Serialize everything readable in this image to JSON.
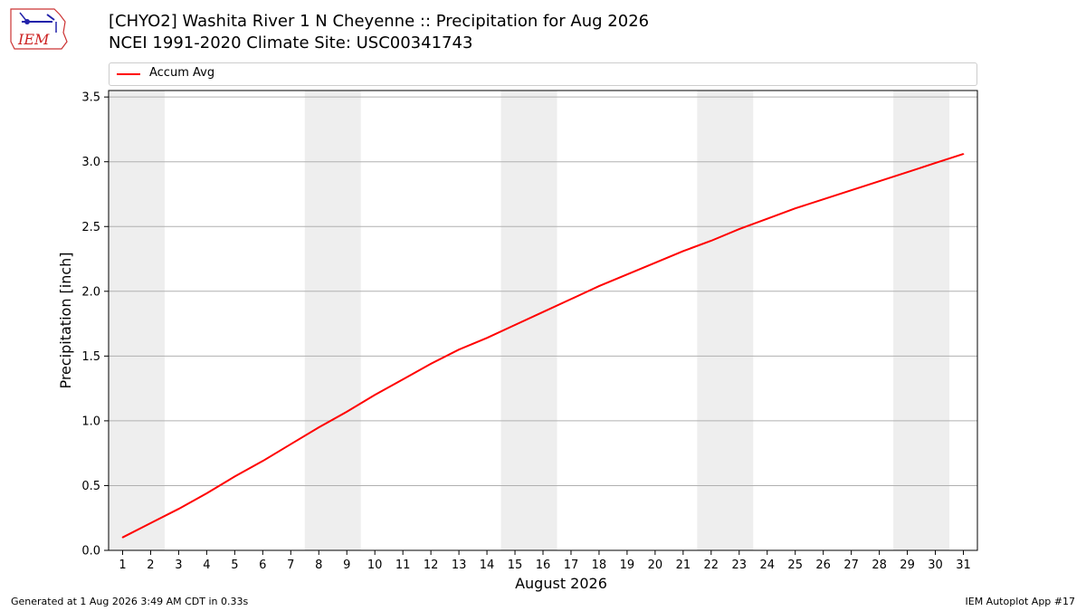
{
  "header": {
    "title_line1": "[CHYO2] Washita River 1 N Cheyenne :: Precipitation for Aug 2026",
    "title_line2": "NCEI 1991-2020 Climate Site: USC00341743"
  },
  "logo": {
    "text": "IEM",
    "icon": "iem-logo-icon"
  },
  "footer": {
    "left": "Generated at 1 Aug 2026 3:49 AM CDT in 0.33s",
    "right": "IEM Autoplot App #17"
  },
  "colors": {
    "line": "#ff0000",
    "shade": "#eeeeee",
    "grid": "#b0b0b0"
  },
  "chart_data": {
    "type": "line",
    "title": "[CHYO2] Washita River 1 N Cheyenne :: Precipitation for Aug 2026",
    "subtitle": "NCEI 1991-2020 Climate Site: USC00341743",
    "xlabel": "August 2026",
    "ylabel": "Precipitation [inch]",
    "xlim": [
      0.5,
      31.5
    ],
    "ylim": [
      0,
      3.55
    ],
    "x_ticks": [
      1,
      2,
      3,
      4,
      5,
      6,
      7,
      8,
      9,
      10,
      11,
      12,
      13,
      14,
      15,
      16,
      17,
      18,
      19,
      20,
      21,
      22,
      23,
      24,
      25,
      26,
      27,
      28,
      29,
      30,
      31
    ],
    "y_ticks": [
      0.0,
      0.5,
      1.0,
      1.5,
      2.0,
      2.5,
      3.0,
      3.5
    ],
    "y_tick_labels": [
      "0.0",
      "0.5",
      "1.0",
      "1.5",
      "2.0",
      "2.5",
      "3.0",
      "3.5"
    ],
    "grid": "horizontal",
    "legend_placement": "top",
    "weekend_shading": [
      [
        0.5,
        2.5
      ],
      [
        7.5,
        9.5
      ],
      [
        14.5,
        16.5
      ],
      [
        21.5,
        23.5
      ],
      [
        28.5,
        30.5
      ]
    ],
    "series": [
      {
        "name": "Accum Avg",
        "x": [
          1,
          2,
          3,
          4,
          5,
          6,
          7,
          8,
          9,
          10,
          11,
          12,
          13,
          14,
          15,
          16,
          17,
          18,
          19,
          20,
          21,
          22,
          23,
          24,
          25,
          26,
          27,
          28,
          29,
          30,
          31
        ],
        "values": [
          0.1,
          0.21,
          0.32,
          0.44,
          0.57,
          0.69,
          0.82,
          0.95,
          1.07,
          1.2,
          1.32,
          1.44,
          1.55,
          1.64,
          1.74,
          1.84,
          1.94,
          2.04,
          2.13,
          2.22,
          2.31,
          2.39,
          2.48,
          2.56,
          2.64,
          2.71,
          2.78,
          2.85,
          2.92,
          2.99,
          3.06
        ]
      }
    ]
  }
}
